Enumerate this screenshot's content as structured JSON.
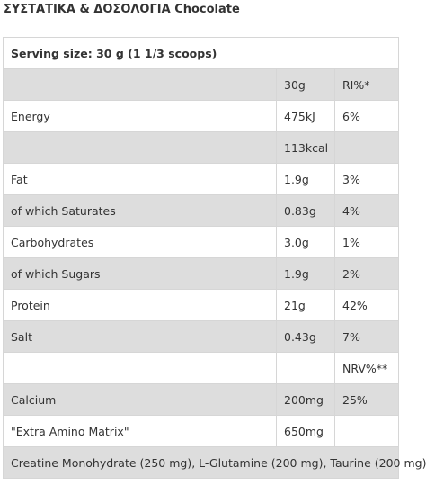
{
  "heading": "ΣΥΣΤΑΤΙΚΑ & ΔΟΣΟΛΟΓΙΑ Chocolate",
  "serving": "Serving size: 30 g (1 1/3 scoops)",
  "rows": [
    {
      "label": "",
      "amount": "30g",
      "ri": "RI%*"
    },
    {
      "label": "Energy",
      "amount": "475kJ",
      "ri": "6%"
    },
    {
      "label": "",
      "amount": "113kcal",
      "ri": ""
    },
    {
      "label": "Fat",
      "amount": "1.9g",
      "ri": "3%"
    },
    {
      "label": "of which Saturates",
      "amount": "0.83g",
      "ri": "4%"
    },
    {
      "label": "Carbohydrates",
      "amount": "3.0g",
      "ri": "1%"
    },
    {
      "label": "of which Sugars",
      "amount": "1.9g",
      "ri": "2%"
    },
    {
      "label": "Protein",
      "amount": "21g",
      "ri": "42%"
    },
    {
      "label": "Salt",
      "amount": "0.43g",
      "ri": "7%"
    },
    {
      "label": "",
      "amount": "",
      "ri": "NRV%**"
    },
    {
      "label": "Calcium",
      "amount": "200mg",
      "ri": "25%"
    },
    {
      "label": "\"Extra Amino Matrix\"",
      "amount": "650mg",
      "ri": ""
    }
  ],
  "footer": "Creatine Monohydrate (250 mg), L-Glutamine (200 mg), Taurine (200 mg)",
  "colors": {
    "row_alt": "#dddddd",
    "border": "#d6d6d6",
    "text": "#333333"
  }
}
